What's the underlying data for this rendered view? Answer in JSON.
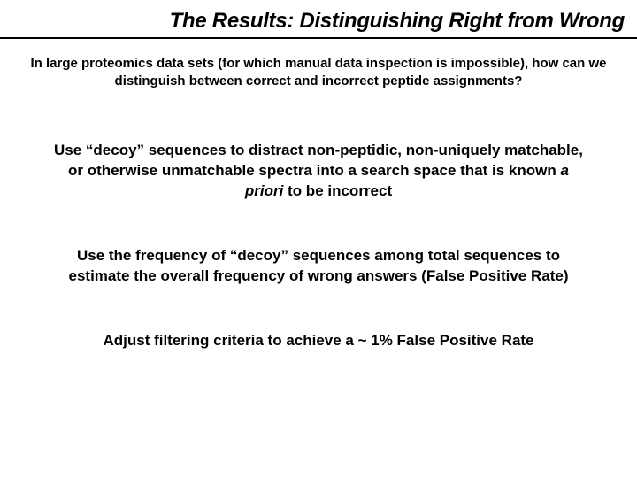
{
  "title": "The Results: Distinguishing Right from Wrong",
  "intro": "In large proteomics data sets (for which manual data inspection is impossible), how can we distinguish between correct and incorrect peptide assignments?",
  "point1_a": "Use “decoy” sequences to distract non-peptidic, non-uniquely matchable, or otherwise unmatchable spectra into a search space that is known ",
  "point1_b": "a priori",
  "point1_c": " to be incorrect",
  "point2": "Use the frequency of “decoy” sequences among total sequences to estimate the overall frequency of wrong answers (False Positive Rate)",
  "point3": "Adjust filtering criteria to achieve a ~ 1% False Positive Rate"
}
